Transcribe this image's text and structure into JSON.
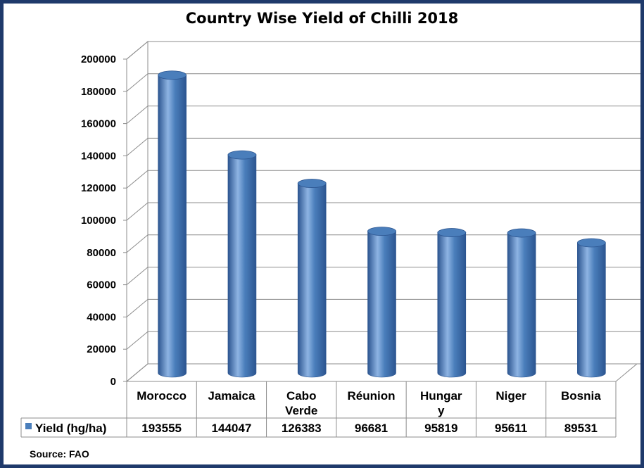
{
  "chart_data": {
    "type": "bar",
    "title": "Country Wise Yield of Chilli 2018",
    "categories": [
      "Morocco",
      "Jamaica",
      "Cabo Verde",
      "Réunion",
      "Hungary",
      "Niger",
      "Bosnia"
    ],
    "category_lines": [
      [
        "Morocco"
      ],
      [
        "Jamaica"
      ],
      [
        "Cabo",
        "Verde"
      ],
      [
        "Réunion"
      ],
      [
        "Hungar",
        "y"
      ],
      [
        "Niger"
      ],
      [
        "Bosnia"
      ]
    ],
    "series": [
      {
        "name": "Yield (hg/ha)",
        "values": [
          193555,
          144047,
          126383,
          96681,
          95819,
          95611,
          89531
        ]
      }
    ],
    "value_labels": [
      "193555",
      "144047",
      "126383",
      "96681",
      "95819",
      "95611",
      "89531"
    ],
    "ylim": [
      0,
      200000
    ],
    "yticks": [
      "0",
      "20000",
      "40000",
      "60000",
      "80000",
      "100000",
      "120000",
      "140000",
      "160000",
      "180000",
      "200000"
    ],
    "grid": true,
    "legend": "data-table-left",
    "bar_color": "#4a7ebb",
    "bar_color_dark": "#2c5590",
    "bar_color_light": "#8eb4e3"
  },
  "source": "Source: FAO"
}
